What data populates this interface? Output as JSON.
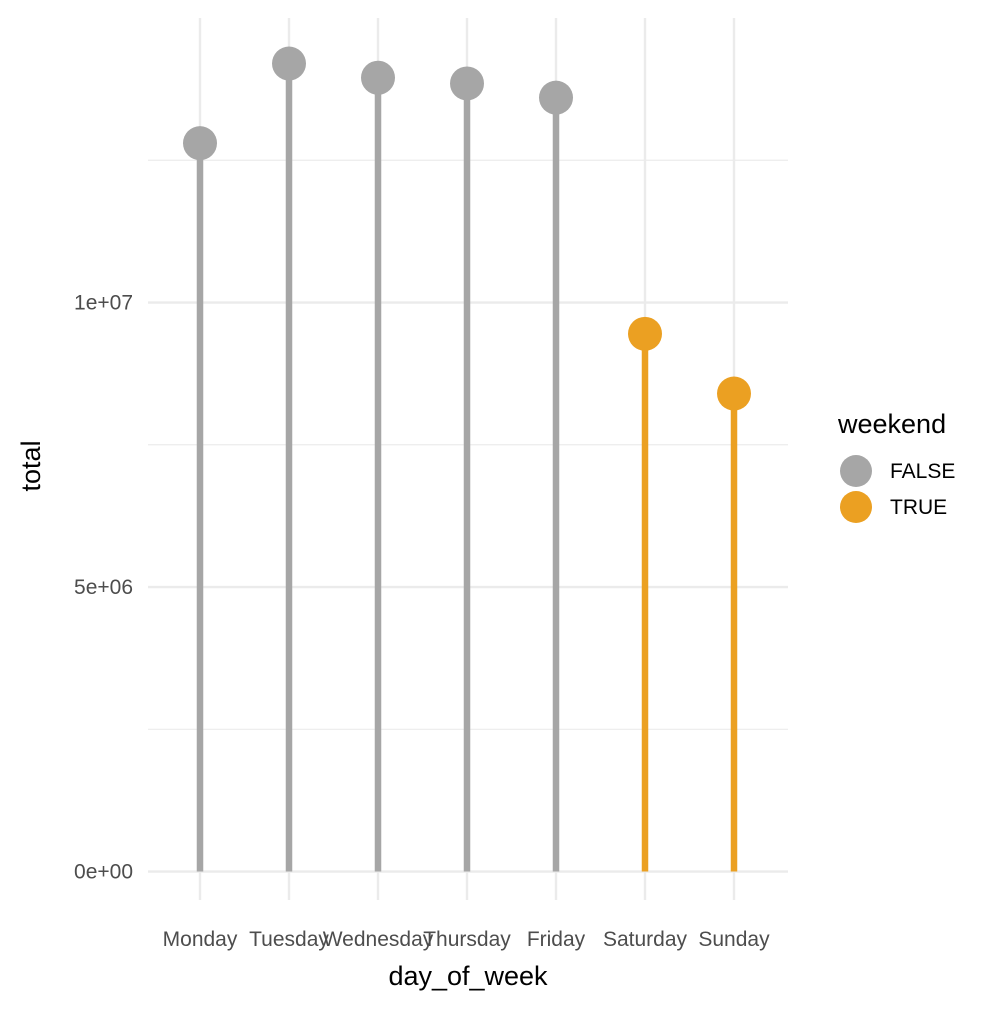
{
  "chart_data": {
    "type": "lollipop",
    "xlabel": "day_of_week",
    "ylabel": "total",
    "categories": [
      "Monday",
      "Tuesday",
      "Wednesday",
      "Thursday",
      "Friday",
      "Saturday",
      "Sunday"
    ],
    "values": [
      12800000,
      14200000,
      13950000,
      13850000,
      13600000,
      9450000,
      8400000
    ],
    "group": [
      "FALSE",
      "FALSE",
      "FALSE",
      "FALSE",
      "FALSE",
      "TRUE",
      "TRUE"
    ],
    "ylim": [
      -500000,
      15000000
    ],
    "yticks": [
      {
        "value": 0,
        "label": "0e+00"
      },
      {
        "value": 5000000,
        "label": "5e+06"
      },
      {
        "value": 10000000,
        "label": "1e+07"
      }
    ],
    "yminor": [
      2500000,
      7500000,
      12500000
    ],
    "grid": true,
    "legend": {
      "title": "weekend",
      "position": "right",
      "entries": [
        {
          "label": "FALSE",
          "color": "#a6a6a6"
        },
        {
          "label": "TRUE",
          "color": "#eba022"
        }
      ]
    },
    "colors": {
      "FALSE": "#a6a6a6",
      "TRUE": "#eba022",
      "grid": "#ebebeb",
      "tick_text": "#4d4d4d"
    }
  }
}
